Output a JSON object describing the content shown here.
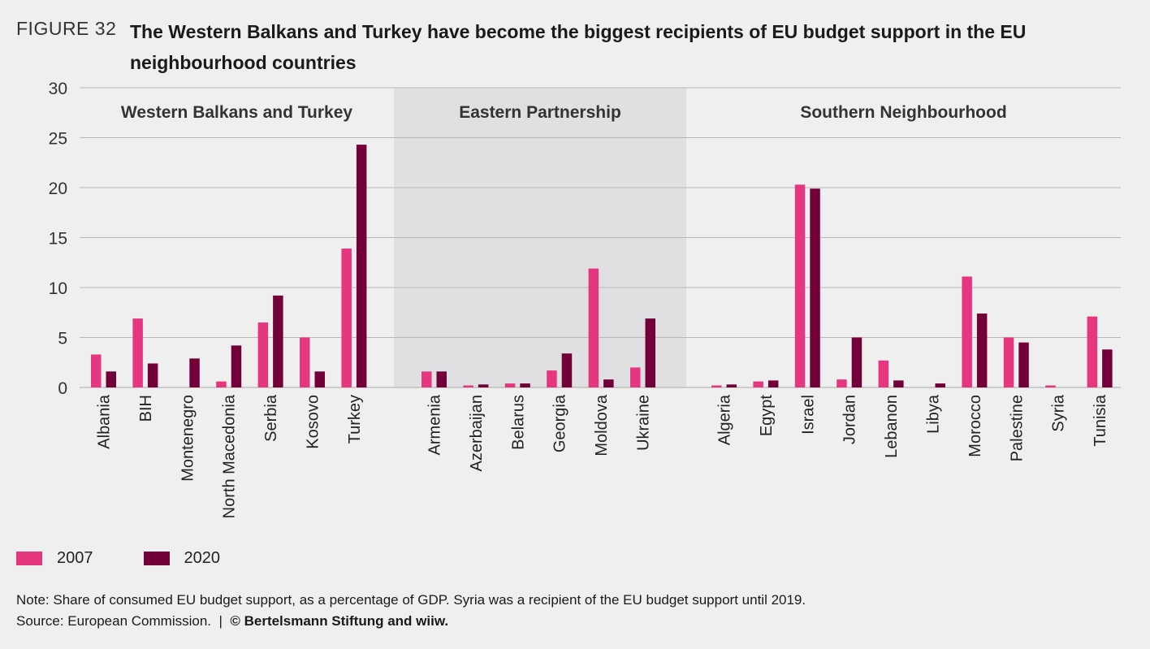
{
  "figure": {
    "label": "FIGURE 32",
    "title": "The Western Balkans and Turkey have become the biggest recipients of EU budget support in the EU neighbourhood countries"
  },
  "legend": {
    "items": [
      {
        "label": "2007",
        "color": "#e6367f"
      },
      {
        "label": "2020",
        "color": "#74003a"
      }
    ]
  },
  "note": {
    "text": "Note: Share of consumed EU budget support, as a percentage of GDP. Syria was a recipient of the EU budget support until 2019.",
    "source": "Source: European Commission.",
    "separator": "|",
    "credit": "© Bertelsmann Stiftung and wiiw."
  },
  "chart_data": {
    "type": "bar",
    "grid": true,
    "ylim": [
      0,
      30
    ],
    "yticks": [
      0,
      5,
      10,
      15,
      20,
      25,
      30
    ],
    "groups": [
      {
        "label": "Western Balkans and Turkey",
        "highlighted": false,
        "categories": [
          "Albania",
          "BIH",
          "Montenegro",
          "North Macedonia",
          "Serbia",
          "Kosovo",
          "Turkey"
        ]
      },
      {
        "label": "Eastern Partnership",
        "highlighted": true,
        "categories": [
          "Armenia",
          "Azerbaijan",
          "Belarus",
          "Georgia",
          "Moldova",
          "Ukraine"
        ]
      },
      {
        "label": "Southern Neighbourhood",
        "highlighted": false,
        "categories": [
          "Algeria",
          "Egypt",
          "Israel",
          "Jordan",
          "Lebanon",
          "Libya",
          "Morocco",
          "Palestine",
          "Syria",
          "Tunisia"
        ]
      }
    ],
    "series": [
      {
        "name": "2007",
        "color": "#e6367f",
        "values": [
          3.3,
          6.9,
          0.0,
          0.6,
          6.5,
          5.0,
          13.9,
          1.6,
          0.2,
          0.4,
          1.7,
          11.9,
          2.0,
          0.2,
          0.6,
          20.3,
          0.8,
          2.7,
          0.0,
          11.1,
          5.0,
          0.2,
          7.1
        ]
      },
      {
        "name": "2020",
        "color": "#74003a",
        "values": [
          1.6,
          2.4,
          2.9,
          4.2,
          9.2,
          1.6,
          24.3,
          1.6,
          0.3,
          0.4,
          3.4,
          0.8,
          6.9,
          0.3,
          0.7,
          19.9,
          5.0,
          0.7,
          0.4,
          7.4,
          4.5,
          0.0,
          3.8
        ]
      }
    ],
    "highlight_color": "#e0e0e2",
    "grid_color": "#b7b7b7"
  }
}
